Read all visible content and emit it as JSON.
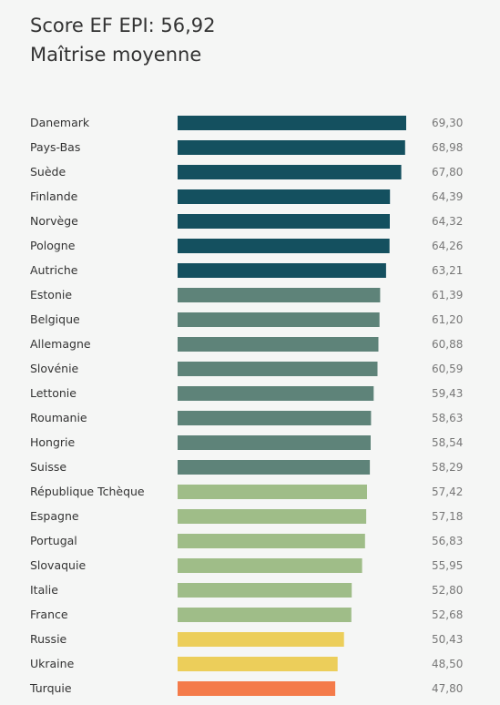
{
  "header": {
    "title": "Score EF EPI: 56,92",
    "subtitle": "Maîtrise moyenne"
  },
  "colors": {
    "very_high": "#14505f",
    "high": "#5e8379",
    "moderate": "#9fbd88",
    "low": "#ecce5a",
    "very_low": "#f47b4a"
  },
  "chart_data": {
    "type": "bar",
    "orientation": "horizontal",
    "title": "Score EF EPI: 56,92",
    "subtitle": "Maîtrise moyenne",
    "xlabel": "",
    "ylabel": "",
    "grid": false,
    "xlim": [
      0,
      70
    ],
    "categories": [
      "Danemark",
      "Pays-Bas",
      "Suède",
      "Finlande",
      "Norvège",
      "Pologne",
      "Autriche",
      "Estonie",
      "Belgique",
      "Allemagne",
      "Slovénie",
      "Lettonie",
      "Roumanie",
      "Hongrie",
      "Suisse",
      "République Tchèque",
      "Espagne",
      "Portugal",
      "Slovaquie",
      "Italie",
      "France",
      "Russie",
      "Ukraine",
      "Turquie"
    ],
    "values": [
      69.3,
      68.98,
      67.8,
      64.39,
      64.32,
      64.26,
      63.21,
      61.39,
      61.2,
      60.88,
      60.59,
      59.43,
      58.63,
      58.54,
      58.29,
      57.42,
      57.18,
      56.83,
      55.95,
      52.8,
      52.68,
      50.43,
      48.5,
      47.8
    ],
    "value_labels": [
      "69,30",
      "68,98",
      "67,80",
      "64,39",
      "64,32",
      "64,26",
      "63,21",
      "61,39",
      "61,20",
      "60,88",
      "60,59",
      "59,43",
      "58,63",
      "58,54",
      "58,29",
      "57,42",
      "57,18",
      "56,83",
      "55,95",
      "52,80",
      "52,68",
      "50,43",
      "48,50",
      "47,80"
    ],
    "bar_colors": [
      "#14505f",
      "#14505f",
      "#14505f",
      "#14505f",
      "#14505f",
      "#14505f",
      "#14505f",
      "#5e8379",
      "#5e8379",
      "#5e8379",
      "#5e8379",
      "#5e8379",
      "#5e8379",
      "#5e8379",
      "#5e8379",
      "#9fbd88",
      "#9fbd88",
      "#9fbd88",
      "#9fbd88",
      "#9fbd88",
      "#9fbd88",
      "#ecce5a",
      "#ecce5a",
      "#f47b4a"
    ]
  }
}
